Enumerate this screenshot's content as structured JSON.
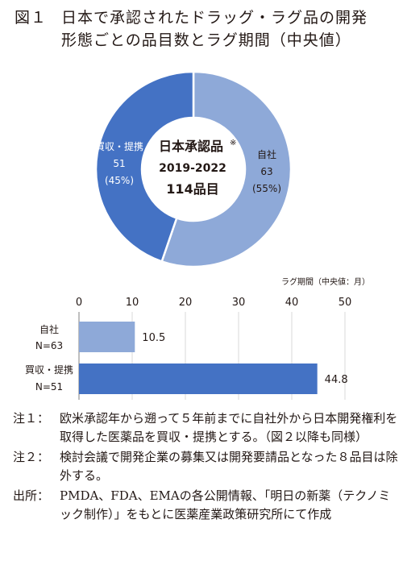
{
  "title": {
    "figure_label": "図１",
    "line1": "日本で承認されたドラッグ・ラグ品の開発",
    "line2": "形態ごとの品目数とラグ期間（中央値）"
  },
  "chart_data": [
    {
      "type": "pie",
      "center_text": {
        "line1": "日本承認品",
        "mark": "※",
        "line2": "2019-2022",
        "line3": "114品目"
      },
      "slices": [
        {
          "name": "自社",
          "value": 63,
          "percent_label": "(55%)",
          "color": "#8ea9d8"
        },
        {
          "name": "買収・提携",
          "value": 51,
          "percent_label": "(45%)",
          "color": "#4472c4"
        }
      ]
    },
    {
      "type": "bar",
      "orientation": "horizontal",
      "axis_title": "ラグ期間（中央値：月）",
      "xlim": [
        0,
        50
      ],
      "ticks": [
        "0",
        "10",
        "20",
        "30",
        "40",
        "50"
      ],
      "categories": [
        {
          "line1": "自社",
          "line2": "N=63"
        },
        {
          "line1": "買収・提携",
          "line2": "N=51"
        }
      ],
      "values": [
        10.5,
        44.8
      ],
      "value_labels": [
        "10.5",
        "44.8"
      ],
      "colors": [
        "#8ea9d8",
        "#4472c4"
      ]
    }
  ],
  "notes": [
    {
      "key": "注１：",
      "text": "欧米承認年から遡って５年前までに自社外から日本開発権利を取得した医薬品を買収・提携とする。（図２以降も同様）"
    },
    {
      "key": "注２：",
      "text": "検討会議で開発企業の募集又は開発要請品となった８品目は除外する。"
    },
    {
      "key": "出所：",
      "text": "PMDA、FDA、EMAの各公開情報、「明日の新薬（テクノミック制作）」をもとに医薬産業政策研究所にて作成"
    }
  ]
}
